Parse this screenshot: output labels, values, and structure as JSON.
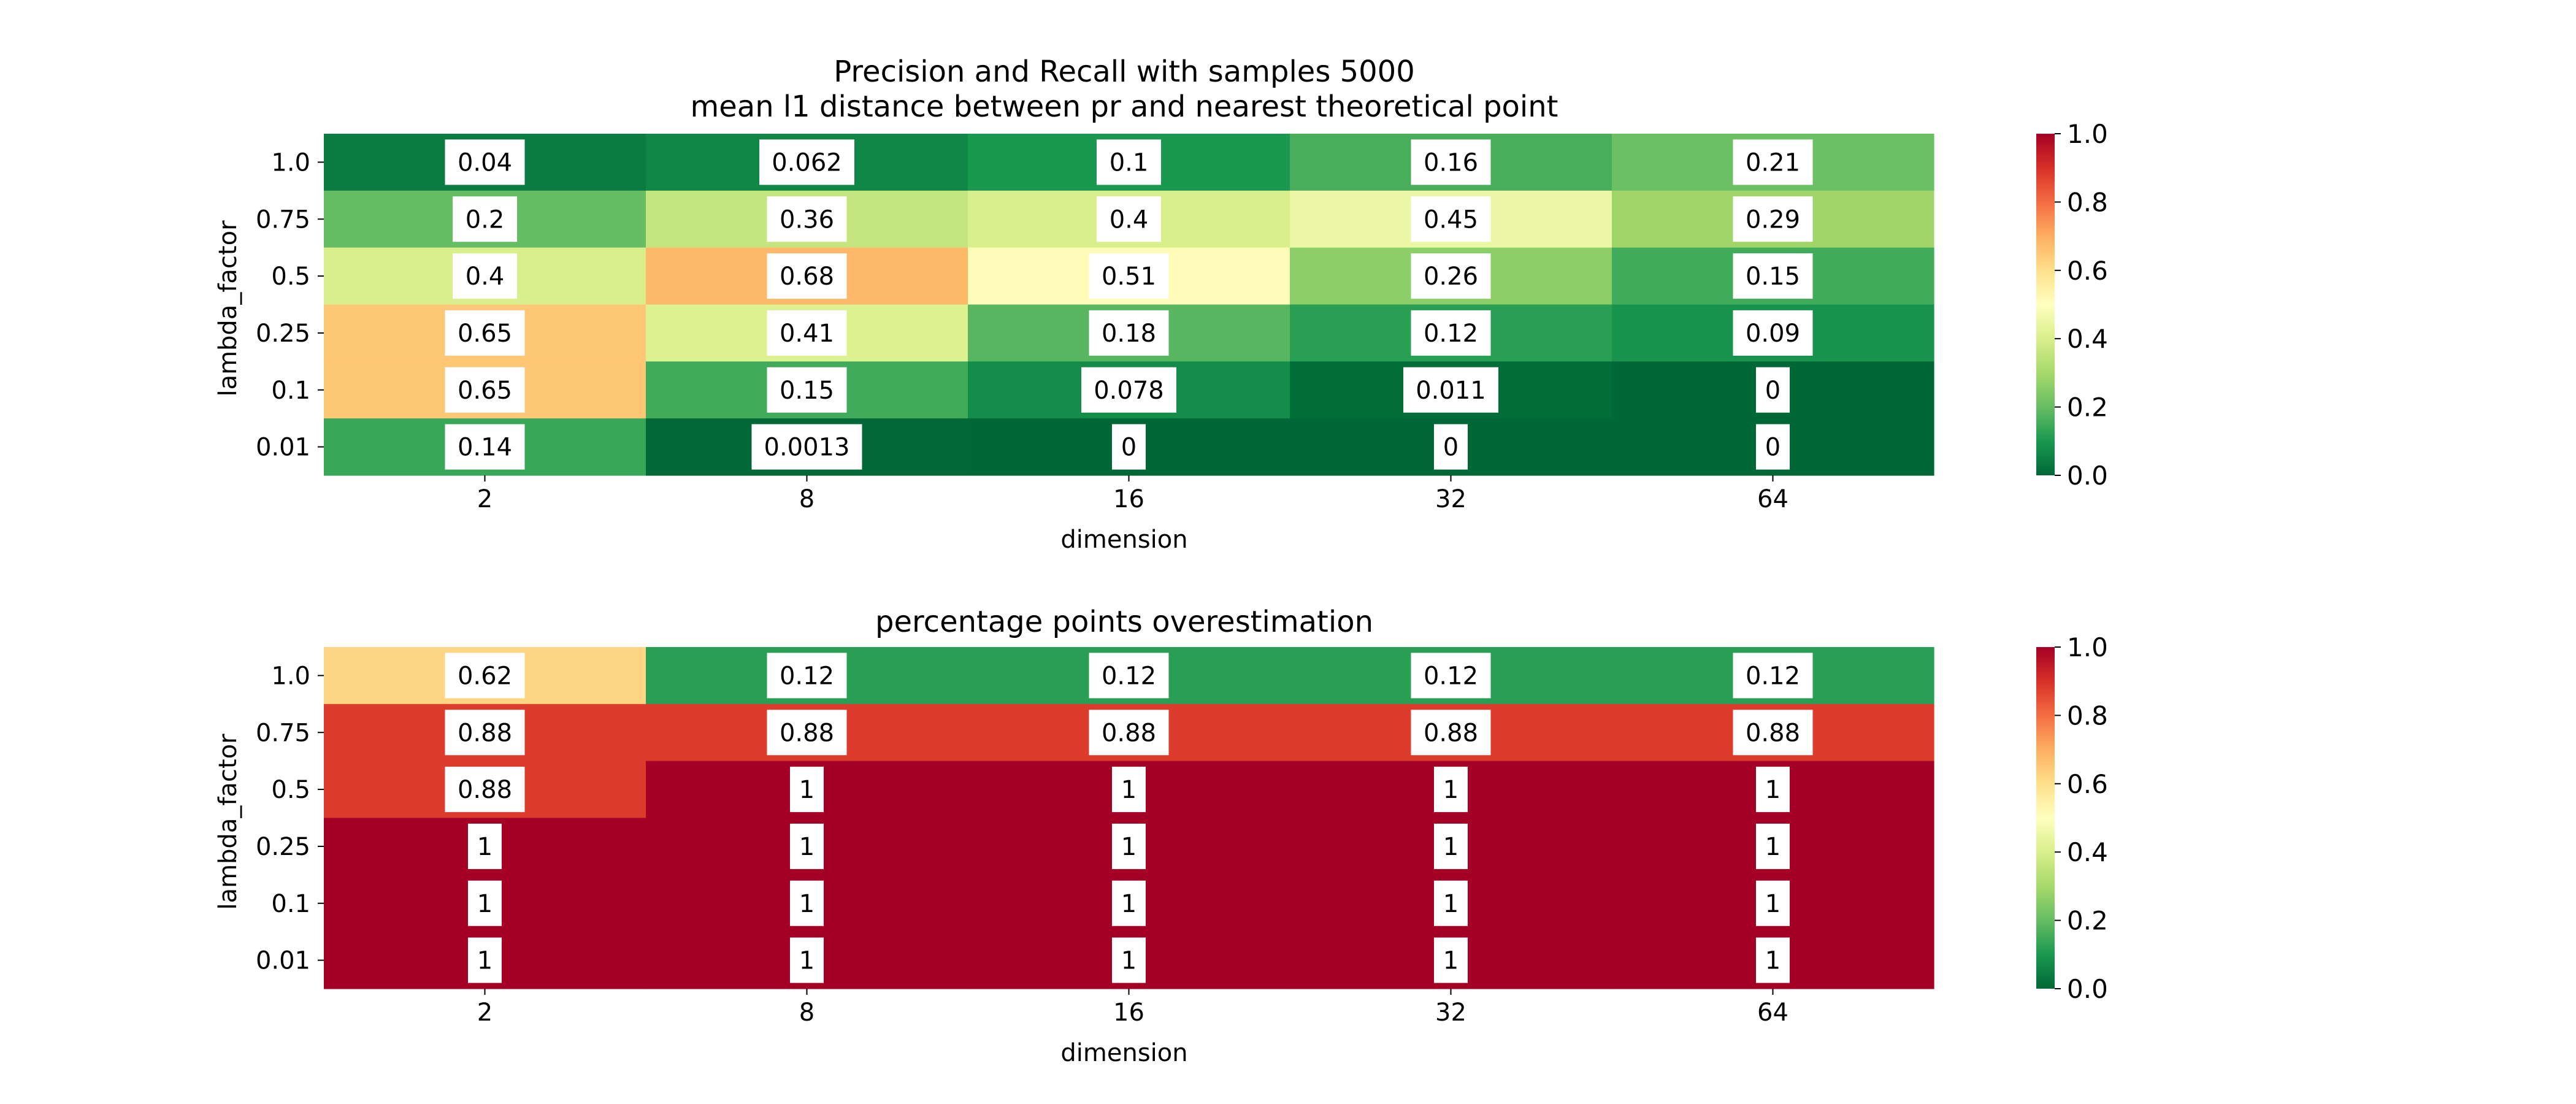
{
  "colormap": {
    "name": "RdYlGn_r",
    "stops": [
      "#006837",
      "#1a9850",
      "#66bd63",
      "#a6d96a",
      "#d9ef8b",
      "#ffffbf",
      "#fee08b",
      "#fdae61",
      "#f46d43",
      "#d73027",
      "#a50026"
    ]
  },
  "chart_data": [
    {
      "type": "heatmap",
      "title": "Precision and Recall with samples 5000",
      "subtitle": "mean l1 distance between pr and nearest theoretical point",
      "xlabel": "dimension",
      "ylabel": "lambda_factor",
      "x_categories": [
        "2",
        "8",
        "16",
        "32",
        "64"
      ],
      "y_categories": [
        "1.0",
        "0.75",
        "0.5",
        "0.25",
        "0.1",
        "0.01"
      ],
      "values": [
        [
          0.04,
          0.062,
          0.1,
          0.16,
          0.21
        ],
        [
          0.2,
          0.36,
          0.4,
          0.45,
          0.29
        ],
        [
          0.4,
          0.68,
          0.51,
          0.26,
          0.15
        ],
        [
          0.65,
          0.41,
          0.18,
          0.12,
          0.09
        ],
        [
          0.65,
          0.15,
          0.078,
          0.011,
          0
        ],
        [
          0.14,
          0.0013,
          0,
          0,
          0
        ]
      ],
      "value_range": [
        0.0,
        1.0
      ],
      "colorbar_ticks": [
        "0.0",
        "0.2",
        "0.4",
        "0.6",
        "0.8",
        "1.0"
      ]
    },
    {
      "type": "heatmap",
      "title": "percentage points overestimation",
      "xlabel": "dimension",
      "ylabel": "lambda_factor",
      "x_categories": [
        "2",
        "8",
        "16",
        "32",
        "64"
      ],
      "y_categories": [
        "1.0",
        "0.75",
        "0.5",
        "0.25",
        "0.1",
        "0.01"
      ],
      "values": [
        [
          0.62,
          0.12,
          0.12,
          0.12,
          0.12
        ],
        [
          0.88,
          0.88,
          0.88,
          0.88,
          0.88
        ],
        [
          0.88,
          1,
          1,
          1,
          1
        ],
        [
          1,
          1,
          1,
          1,
          1
        ],
        [
          1,
          1,
          1,
          1,
          1
        ],
        [
          1,
          1,
          1,
          1,
          1
        ]
      ],
      "value_range": [
        0.0,
        1.0
      ],
      "colorbar_ticks": [
        "0.0",
        "0.2",
        "0.4",
        "0.6",
        "0.8",
        "1.0"
      ]
    }
  ]
}
